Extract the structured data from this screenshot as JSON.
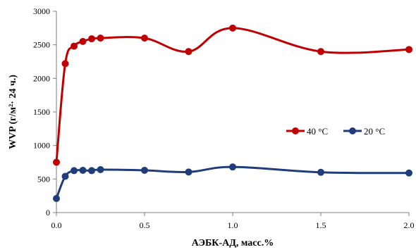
{
  "chart_data": {
    "type": "line",
    "title": "",
    "xlabel": "АЭБК-АД, масс.%",
    "ylabel": "WVP  (г/м²· 24 ч.)",
    "xlim": [
      0,
      2
    ],
    "ylim": [
      0,
      3000
    ],
    "x_ticks": [
      "0.0",
      "0.5",
      "1.0",
      "1.5",
      "2.0"
    ],
    "y_ticks": [
      "0",
      "500",
      "1000",
      "1500",
      "2000",
      "2500",
      "3000"
    ],
    "grid": false,
    "legend_position": "right",
    "series": [
      {
        "name": "40 °C",
        "color": "#C00000",
        "x": [
          0,
          0.05,
          0.1,
          0.15,
          0.2,
          0.25,
          0.5,
          0.75,
          1.0,
          1.5,
          2.0
        ],
        "y": [
          750,
          2220,
          2480,
          2550,
          2590,
          2600,
          2600,
          2400,
          2750,
          2400,
          2430
        ]
      },
      {
        "name": "20 °C",
        "color": "#1F3D7A",
        "x": [
          0,
          0.05,
          0.1,
          0.15,
          0.2,
          0.25,
          0.5,
          0.75,
          1.0,
          1.5,
          2.0
        ],
        "y": [
          210,
          540,
          625,
          630,
          625,
          640,
          630,
          605,
          680,
          600,
          590
        ]
      }
    ]
  }
}
